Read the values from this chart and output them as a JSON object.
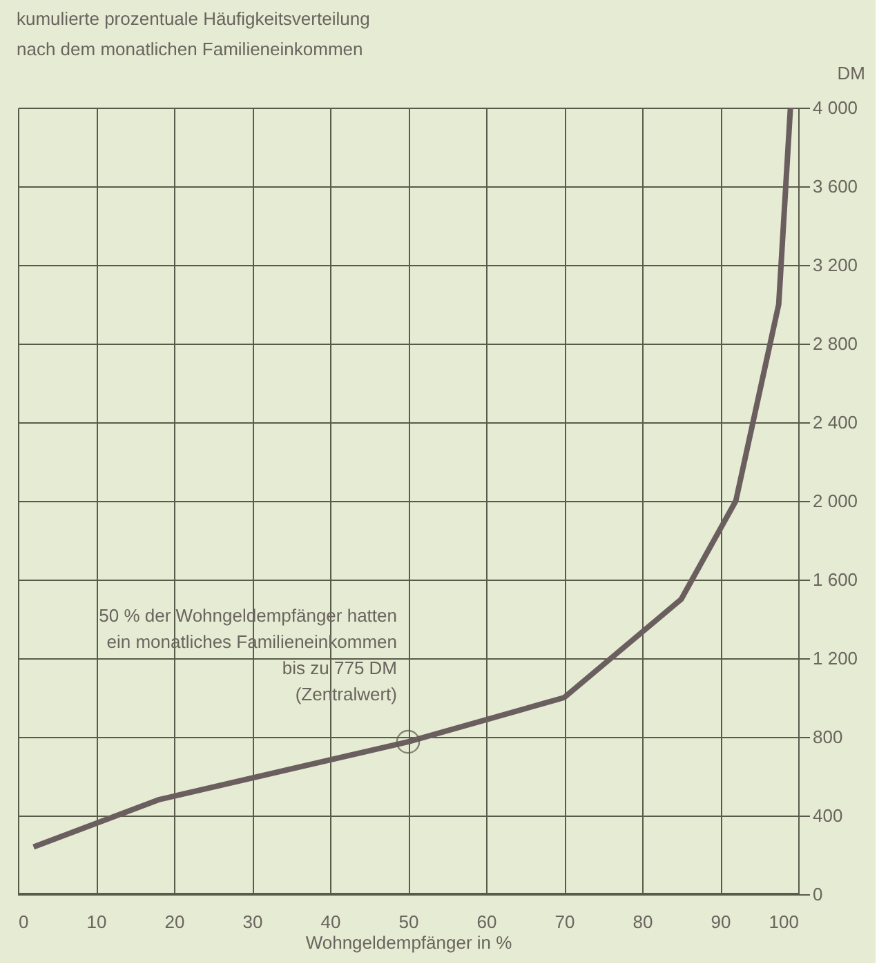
{
  "chart_data": {
    "type": "line",
    "title": [
      "kumulierte prozentuale Häufigkeitsverteilung",
      "nach dem monatlichen Familieneinkommen"
    ],
    "xlabel": "Wohngeldempfänger in %",
    "ylabel": "DM",
    "x": [
      2,
      18,
      50,
      70,
      85,
      92,
      97.5,
      99
    ],
    "series": [
      {
        "color": "#6a5f5e",
        "values": [
          240,
          480,
          775,
          1000,
          1500,
          2000,
          3000,
          4000
        ]
      }
    ],
    "xlim": [
      0,
      100
    ],
    "xticks": [
      0,
      10,
      20,
      30,
      40,
      50,
      60,
      70,
      80,
      90,
      100
    ],
    "ylim": [
      0,
      4000
    ],
    "yticks": [
      0,
      400,
      800,
      1200,
      1600,
      2000,
      2400,
      2800,
      3200,
      3600,
      4000
    ],
    "grid": true,
    "marker": "none",
    "line_style": "solid",
    "annotations": [
      {
        "text": "50 % der Wohngeldempfänger hatten\nein monatliches Familieneinkommen\nbis zu 775 DM\n(Zentralwert)",
        "x": 50,
        "y": 775
      }
    ]
  }
}
